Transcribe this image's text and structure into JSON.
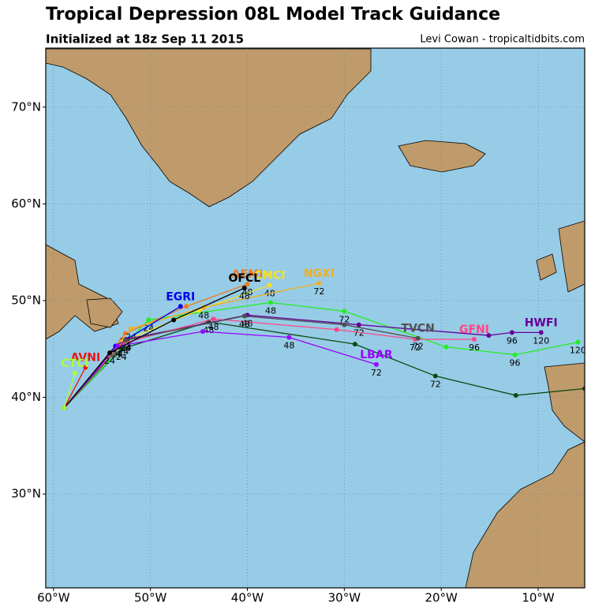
{
  "chart_data": {
    "type": "track",
    "title": "Tropical Depression 08L Model Track Guidance",
    "subtitle": "Initialized at 18z Sep 11 2015",
    "credit": "Levi Cowan - tropicaltidbits.com",
    "xlim": [
      -60.8,
      -5.2
    ],
    "ylim": [
      20.3,
      76.1
    ],
    "xticks": [
      {
        "value": -60,
        "label": "60°W"
      },
      {
        "value": -50,
        "label": "50°W"
      },
      {
        "value": -40,
        "label": "40°W"
      },
      {
        "value": -30,
        "label": "30°W"
      },
      {
        "value": -20,
        "label": "20°W"
      },
      {
        "value": -10,
        "label": "10°W"
      }
    ],
    "yticks": [
      {
        "value": 30,
        "label": "30°N"
      },
      {
        "value": 40,
        "label": "40°N"
      },
      {
        "value": 50,
        "label": "50°N"
      },
      {
        "value": 60,
        "label": "60°N"
      },
      {
        "value": 70,
        "label": "70°N"
      }
    ],
    "grid": true,
    "series": [
      {
        "name": null,
        "color": "#0b4a12",
        "x": [
          -58.9,
          -53.0,
          -44.0,
          -28.9,
          -20.6,
          -12.3,
          -5.2
        ],
        "values": [
          38.9,
          45.0,
          47.8,
          45.5,
          42.2,
          40.2,
          40.9
        ],
        "hours": [
          null,
          24,
          48,
          null,
          72,
          null,
          null
        ]
      },
      {
        "name": null,
        "color": "#22ee22",
        "x": [
          -58.9,
          -50.2,
          -37.6,
          -30.0,
          -19.5,
          -12.4,
          -5.9
        ],
        "values": [
          38.9,
          48.0,
          49.8,
          48.9,
          45.2,
          44.4,
          45.7
        ],
        "hours": [
          null,
          24,
          48,
          72,
          null,
          96,
          120
        ]
      },
      {
        "name": "AEMI",
        "color": "#f07820",
        "x": [
          -58.9,
          -52.6,
          -46.3,
          -40.0
        ],
        "values": [
          38.9,
          46.6,
          49.4,
          51.7
        ],
        "hours": [
          null,
          24,
          null,
          48
        ]
      },
      {
        "name": "CMCI",
        "color": "#f8e020",
        "x": [
          -58.9,
          -52.8,
          -45.0,
          -37.7
        ],
        "values": [
          38.9,
          45.8,
          49.0,
          51.6
        ],
        "hours": [
          null,
          24,
          null,
          48
        ]
      },
      {
        "name": "NGXI",
        "color": "#f0b020",
        "x": [
          -58.9,
          -52.0,
          -44.5,
          -32.6
        ],
        "values": [
          38.9,
          47.1,
          49.3,
          51.8
        ],
        "hours": [
          null,
          24,
          48,
          72
        ]
      },
      {
        "name": "EGRI",
        "color": "#0000ee",
        "x": [
          -58.9,
          -53.6,
          -46.9
        ],
        "values": [
          38.9,
          45.3,
          49.4
        ],
        "hours": [
          null,
          24,
          null
        ]
      },
      {
        "name": "HWFI",
        "color": "#660099",
        "x": [
          -58.9,
          -52.5,
          -40.0,
          -28.5,
          -15.1,
          -12.7,
          -9.7
        ],
        "values": [
          38.9,
          46.0,
          48.5,
          47.5,
          46.4,
          46.7,
          46.7
        ],
        "hours": [
          null,
          24,
          48,
          72,
          null,
          96,
          120
        ]
      },
      {
        "name": "GFNI",
        "color": "#ff4488",
        "x": [
          -58.9,
          -52.8,
          -43.5,
          -30.8,
          -22.7,
          -16.6
        ],
        "values": [
          38.9,
          45.6,
          48.1,
          47.0,
          46.0,
          46.0
        ],
        "hours": [
          null,
          24,
          48,
          null,
          72,
          96
        ]
      },
      {
        "name": "TVCN",
        "color": "#505050",
        "x": [
          -58.9,
          -52.6,
          -40.3,
          -30.0,
          -22.4
        ],
        "values": [
          38.9,
          45.9,
          48.4,
          47.5,
          46.1
        ],
        "hours": [
          null,
          24,
          48,
          null,
          72
        ]
      },
      {
        "name": "LBAR",
        "color": "#9900ff",
        "x": [
          -58.9,
          -53.4,
          -44.6,
          -35.7,
          -26.7
        ],
        "values": [
          38.9,
          45.3,
          46.8,
          46.2,
          43.4
        ],
        "hours": [
          null,
          24,
          null,
          48,
          72
        ]
      },
      {
        "name": "OFCL",
        "color": "#000000",
        "x": [
          -58.9,
          -54.2,
          -47.6,
          -40.3
        ],
        "values": [
          38.9,
          44.6,
          48.0,
          51.3
        ],
        "hours": [
          null,
          24,
          null,
          48
        ]
      },
      {
        "name": "AVNI",
        "color": "#ee1111",
        "x": [
          -58.9,
          -56.7
        ],
        "values": [
          38.9,
          43.1
        ],
        "hours": [
          null,
          null
        ]
      },
      {
        "name": "CTCI",
        "color": "#aaff33",
        "x": [
          -58.9,
          -57.8
        ],
        "values": [
          38.9,
          42.5
        ],
        "hours": [
          null,
          null
        ]
      }
    ]
  }
}
